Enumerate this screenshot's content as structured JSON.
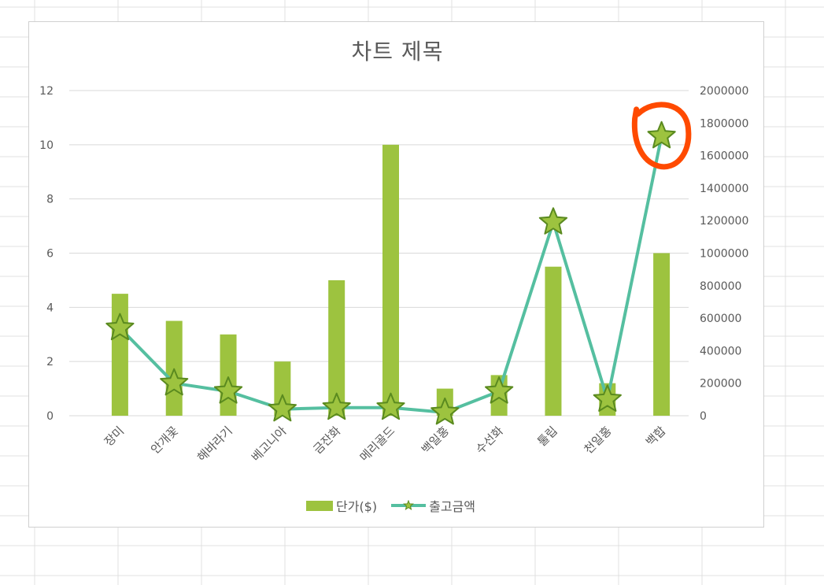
{
  "app": "Excel",
  "chart_data": {
    "type": "bar+line",
    "title": "차트 제목",
    "categories": [
      "장미",
      "안개꽃",
      "해바라기",
      "베고니아",
      "금잔화",
      "메리골드",
      "백일홍",
      "수선화",
      "툴립",
      "천일홍",
      "백합"
    ],
    "series": [
      {
        "name": "단가($)",
        "type": "bar",
        "axis": "primary",
        "color": "#9DC33F",
        "values": [
          4.5,
          3.5,
          3,
          2,
          5,
          10,
          1,
          1.5,
          5.5,
          1.2,
          6
        ]
      },
      {
        "name": "출고금액",
        "type": "line",
        "axis": "secondary",
        "color": "#55BFA0",
        "marker": "star",
        "marker_fill": "#9DC33F",
        "marker_stroke": "#5A8A1F",
        "values": [
          540000,
          200000,
          150000,
          40000,
          50000,
          50000,
          20000,
          150000,
          1190000,
          100000,
          1720000
        ]
      }
    ],
    "y_primary": {
      "range": [
        0,
        12
      ],
      "ticks": [
        "0",
        "2",
        "4",
        "6",
        "8",
        "10",
        "12"
      ]
    },
    "y_secondary": {
      "range": [
        0,
        2000000
      ],
      "ticks": [
        "0",
        "200000",
        "400000",
        "600000",
        "800000",
        "1000000",
        "1200000",
        "1400000",
        "1600000",
        "1800000",
        "2000000"
      ]
    },
    "grid": true,
    "legend_position": "bottom"
  },
  "annotation": {
    "type": "hand-drawn circle",
    "color": "#FF4A00",
    "target_category": "백합"
  },
  "legend": {
    "bar_label": "단가($)",
    "line_label": "출고금액"
  }
}
